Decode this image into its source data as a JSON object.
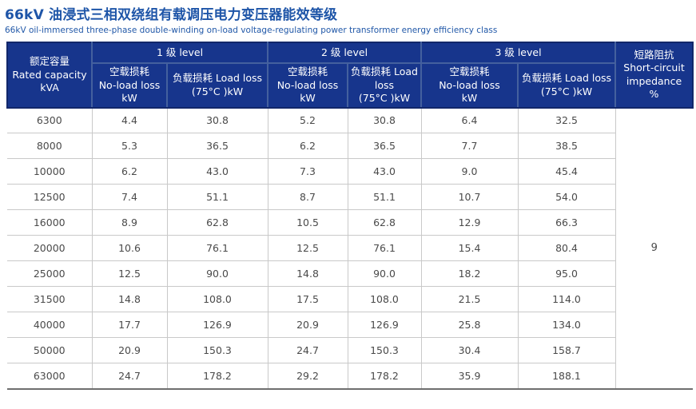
{
  "title": "66kV 油浸式三相双绕组有载调压电力变压器能效等级",
  "subtitle": "66kV oil-immersed three-phase double-winding on-load voltage-regulating power transformer energy efficiency class",
  "colors": {
    "header_background": "#17358C",
    "header_inner_border": "#44609E",
    "header_outer_border": "#12276A",
    "title_blue": "#1E55A8",
    "body_text": "#4A4A4A",
    "row_border": "#C9C9C9",
    "table_bottom_border": "#6E6E6E"
  },
  "table": {
    "header": {
      "capacity": "额定容量\nRated capacity\nkVA",
      "groups": [
        {
          "label": "1 级 level",
          "noload": "空载损耗\nNo-load loss\nkW",
          "load": "负载损耗 Load loss\n(75°C )kW"
        },
        {
          "label": "2 级 level",
          "noload": "空载损耗\nNo-load loss\nkW",
          "load": "负载损耗 Load\nloss\n(75°C )kW"
        },
        {
          "label": "3 级 level",
          "noload": "空载损耗\nNo-load loss\nkW",
          "load": "负载损耗 Load loss\n(75°C )kW"
        }
      ],
      "impedance": "短路阻抗\nShort-circuit\nimpedance\n%"
    },
    "impedance_value": "9",
    "rows": [
      {
        "capacity": "6300",
        "values": [
          "4.4",
          "30.8",
          "5.2",
          "30.8",
          "6.4",
          "32.5"
        ]
      },
      {
        "capacity": "8000",
        "values": [
          "5.3",
          "36.5",
          "6.2",
          "36.5",
          "7.7",
          "38.5"
        ]
      },
      {
        "capacity": "10000",
        "values": [
          "6.2",
          "43.0",
          "7.3",
          "43.0",
          "9.0",
          "45.4"
        ]
      },
      {
        "capacity": "12500",
        "values": [
          "7.4",
          "51.1",
          "8.7",
          "51.1",
          "10.7",
          "54.0"
        ]
      },
      {
        "capacity": "16000",
        "values": [
          "8.9",
          "62.8",
          "10.5",
          "62.8",
          "12.9",
          "66.3"
        ]
      },
      {
        "capacity": "20000",
        "values": [
          "10.6",
          "76.1",
          "12.5",
          "76.1",
          "15.4",
          "80.4"
        ]
      },
      {
        "capacity": "25000",
        "values": [
          "12.5",
          "90.0",
          "14.8",
          "90.0",
          "18.2",
          "95.0"
        ]
      },
      {
        "capacity": "31500",
        "values": [
          "14.8",
          "108.0",
          "17.5",
          "108.0",
          "21.5",
          "114.0"
        ]
      },
      {
        "capacity": "40000",
        "values": [
          "17.7",
          "126.9",
          "20.9",
          "126.9",
          "25.8",
          "134.0"
        ]
      },
      {
        "capacity": "50000",
        "values": [
          "20.9",
          "150.3",
          "24.7",
          "150.3",
          "30.4",
          "158.7"
        ]
      },
      {
        "capacity": "63000",
        "values": [
          "24.7",
          "178.2",
          "29.2",
          "178.2",
          "35.9",
          "188.1"
        ]
      }
    ]
  },
  "chart_data": {
    "type": "table",
    "title": "66kV 油浸式三相双绕组有载调压电力变压器能效等级",
    "columns": [
      "Rated capacity kVA",
      "Level 1 No-load loss kW",
      "Level 1 Load loss (75°C) kW",
      "Level 2 No-load loss kW",
      "Level 2 Load loss (75°C) kW",
      "Level 3 No-load loss kW",
      "Level 3 Load loss (75°C) kW",
      "Short-circuit impedance %"
    ],
    "rows": [
      [
        6300,
        4.4,
        30.8,
        5.2,
        30.8,
        6.4,
        32.5,
        9
      ],
      [
        8000,
        5.3,
        36.5,
        6.2,
        36.5,
        7.7,
        38.5,
        9
      ],
      [
        10000,
        6.2,
        43.0,
        7.3,
        43.0,
        9.0,
        45.4,
        9
      ],
      [
        12500,
        7.4,
        51.1,
        8.7,
        51.1,
        10.7,
        54.0,
        9
      ],
      [
        16000,
        8.9,
        62.8,
        10.5,
        62.8,
        12.9,
        66.3,
        9
      ],
      [
        20000,
        10.6,
        76.1,
        12.5,
        76.1,
        15.4,
        80.4,
        9
      ],
      [
        25000,
        12.5,
        90.0,
        14.8,
        90.0,
        18.2,
        95.0,
        9
      ],
      [
        31500,
        14.8,
        108.0,
        17.5,
        108.0,
        21.5,
        114.0,
        9
      ],
      [
        40000,
        17.7,
        126.9,
        20.9,
        126.9,
        25.8,
        134.0,
        9
      ],
      [
        50000,
        20.9,
        150.3,
        24.7,
        150.3,
        30.4,
        158.7,
        9
      ],
      [
        63000,
        24.7,
        178.2,
        29.2,
        178.2,
        35.9,
        188.1,
        9
      ]
    ]
  }
}
